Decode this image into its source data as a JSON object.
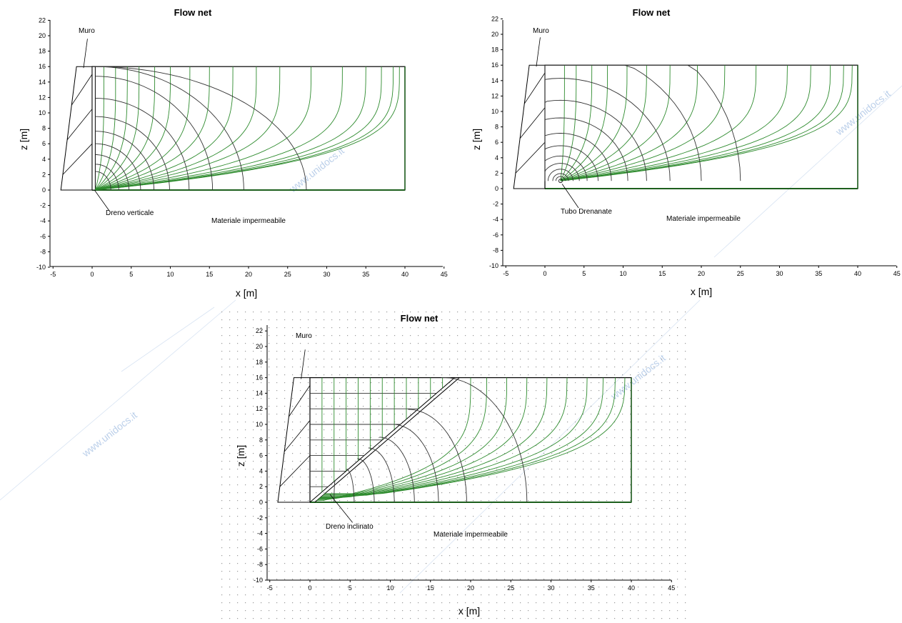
{
  "colors": {
    "flow_line": "#2e8b2e",
    "equipotential": "#333333",
    "outline": "#000000",
    "grid_dot": "#9a9a9a",
    "watermark": "#bcd0ea"
  },
  "panels": [
    {
      "id": "verticale",
      "title": "Flow net",
      "xlabel": "x [m]",
      "ylabel": "z [m]",
      "xticks": [
        "-5",
        "0",
        "5",
        "10",
        "15",
        "20",
        "25",
        "30",
        "35",
        "40",
        "45"
      ],
      "yticks": [
        "22",
        "20",
        "18",
        "16",
        "14",
        "12",
        "10",
        "8",
        "6",
        "4",
        "2",
        "0",
        "-2",
        "-4",
        "-6",
        "-8",
        "-10"
      ],
      "annotations": {
        "wall": "Muro",
        "drain": "Dreno verticale",
        "base": "Materiale impermeabile"
      }
    },
    {
      "id": "tubo",
      "title": "Flow net",
      "xlabel": "x [m]",
      "ylabel": "z [m]",
      "xticks": [
        "-5",
        "0",
        "5",
        "10",
        "15",
        "20",
        "25",
        "30",
        "35",
        "40",
        "45"
      ],
      "yticks": [
        "22",
        "20",
        "18",
        "16",
        "14",
        "12",
        "10",
        "8",
        "6",
        "4",
        "2",
        "0",
        "-2",
        "-4",
        "-6",
        "-8",
        "-10"
      ],
      "annotations": {
        "wall": "Muro",
        "drain": "Tubo Drenanate",
        "base": "Materiale impermeabile"
      }
    },
    {
      "id": "inclinato",
      "title": "Flow net",
      "xlabel": "x [m]",
      "ylabel": "z [m]",
      "xticks": [
        "-5",
        "0",
        "5",
        "10",
        "15",
        "20",
        "25",
        "30",
        "35",
        "40",
        "45"
      ],
      "yticks": [
        "22",
        "20",
        "18",
        "16",
        "14",
        "12",
        "10",
        "8",
        "6",
        "4",
        "2",
        "0",
        "-2",
        "-4",
        "-6",
        "-8",
        "-10"
      ],
      "annotations": {
        "wall": "Muro",
        "drain": "Dreno inclinato",
        "base": "Materiale impermeabile"
      }
    }
  ],
  "watermark": {
    "text": "www.unidocs.it"
  },
  "chart_data": [
    {
      "type": "flow-net",
      "title": "Flow net",
      "drain": "Dreno verticale",
      "xlim": [
        -5,
        45
      ],
      "ylim": [
        -10,
        22
      ],
      "backfill": {
        "x": [
          0,
          40
        ],
        "z": [
          0,
          16
        ]
      },
      "wall_base_x": -4,
      "wall_top_x": -2,
      "drain_x": 0.3
    },
    {
      "type": "flow-net",
      "title": "Flow net",
      "drain": "Tubo Drenanate",
      "xlim": [
        -5,
        45
      ],
      "ylim": [
        -10,
        22
      ],
      "backfill": {
        "x": [
          0,
          40
        ],
        "z": [
          0,
          16
        ]
      },
      "wall_base_x": -4,
      "wall_top_x": -2,
      "drain_point": [
        2,
        1
      ]
    },
    {
      "type": "flow-net",
      "title": "Flow net",
      "drain": "Dreno inclinato",
      "xlim": [
        -5,
        45
      ],
      "ylim": [
        -10,
        22
      ],
      "backfill": {
        "x": [
          0,
          40
        ],
        "z": [
          0,
          16
        ]
      },
      "wall_base_x": -4,
      "wall_top_x": -2,
      "drain_line": [
        [
          0,
          0
        ],
        [
          18,
          16
        ]
      ]
    }
  ]
}
